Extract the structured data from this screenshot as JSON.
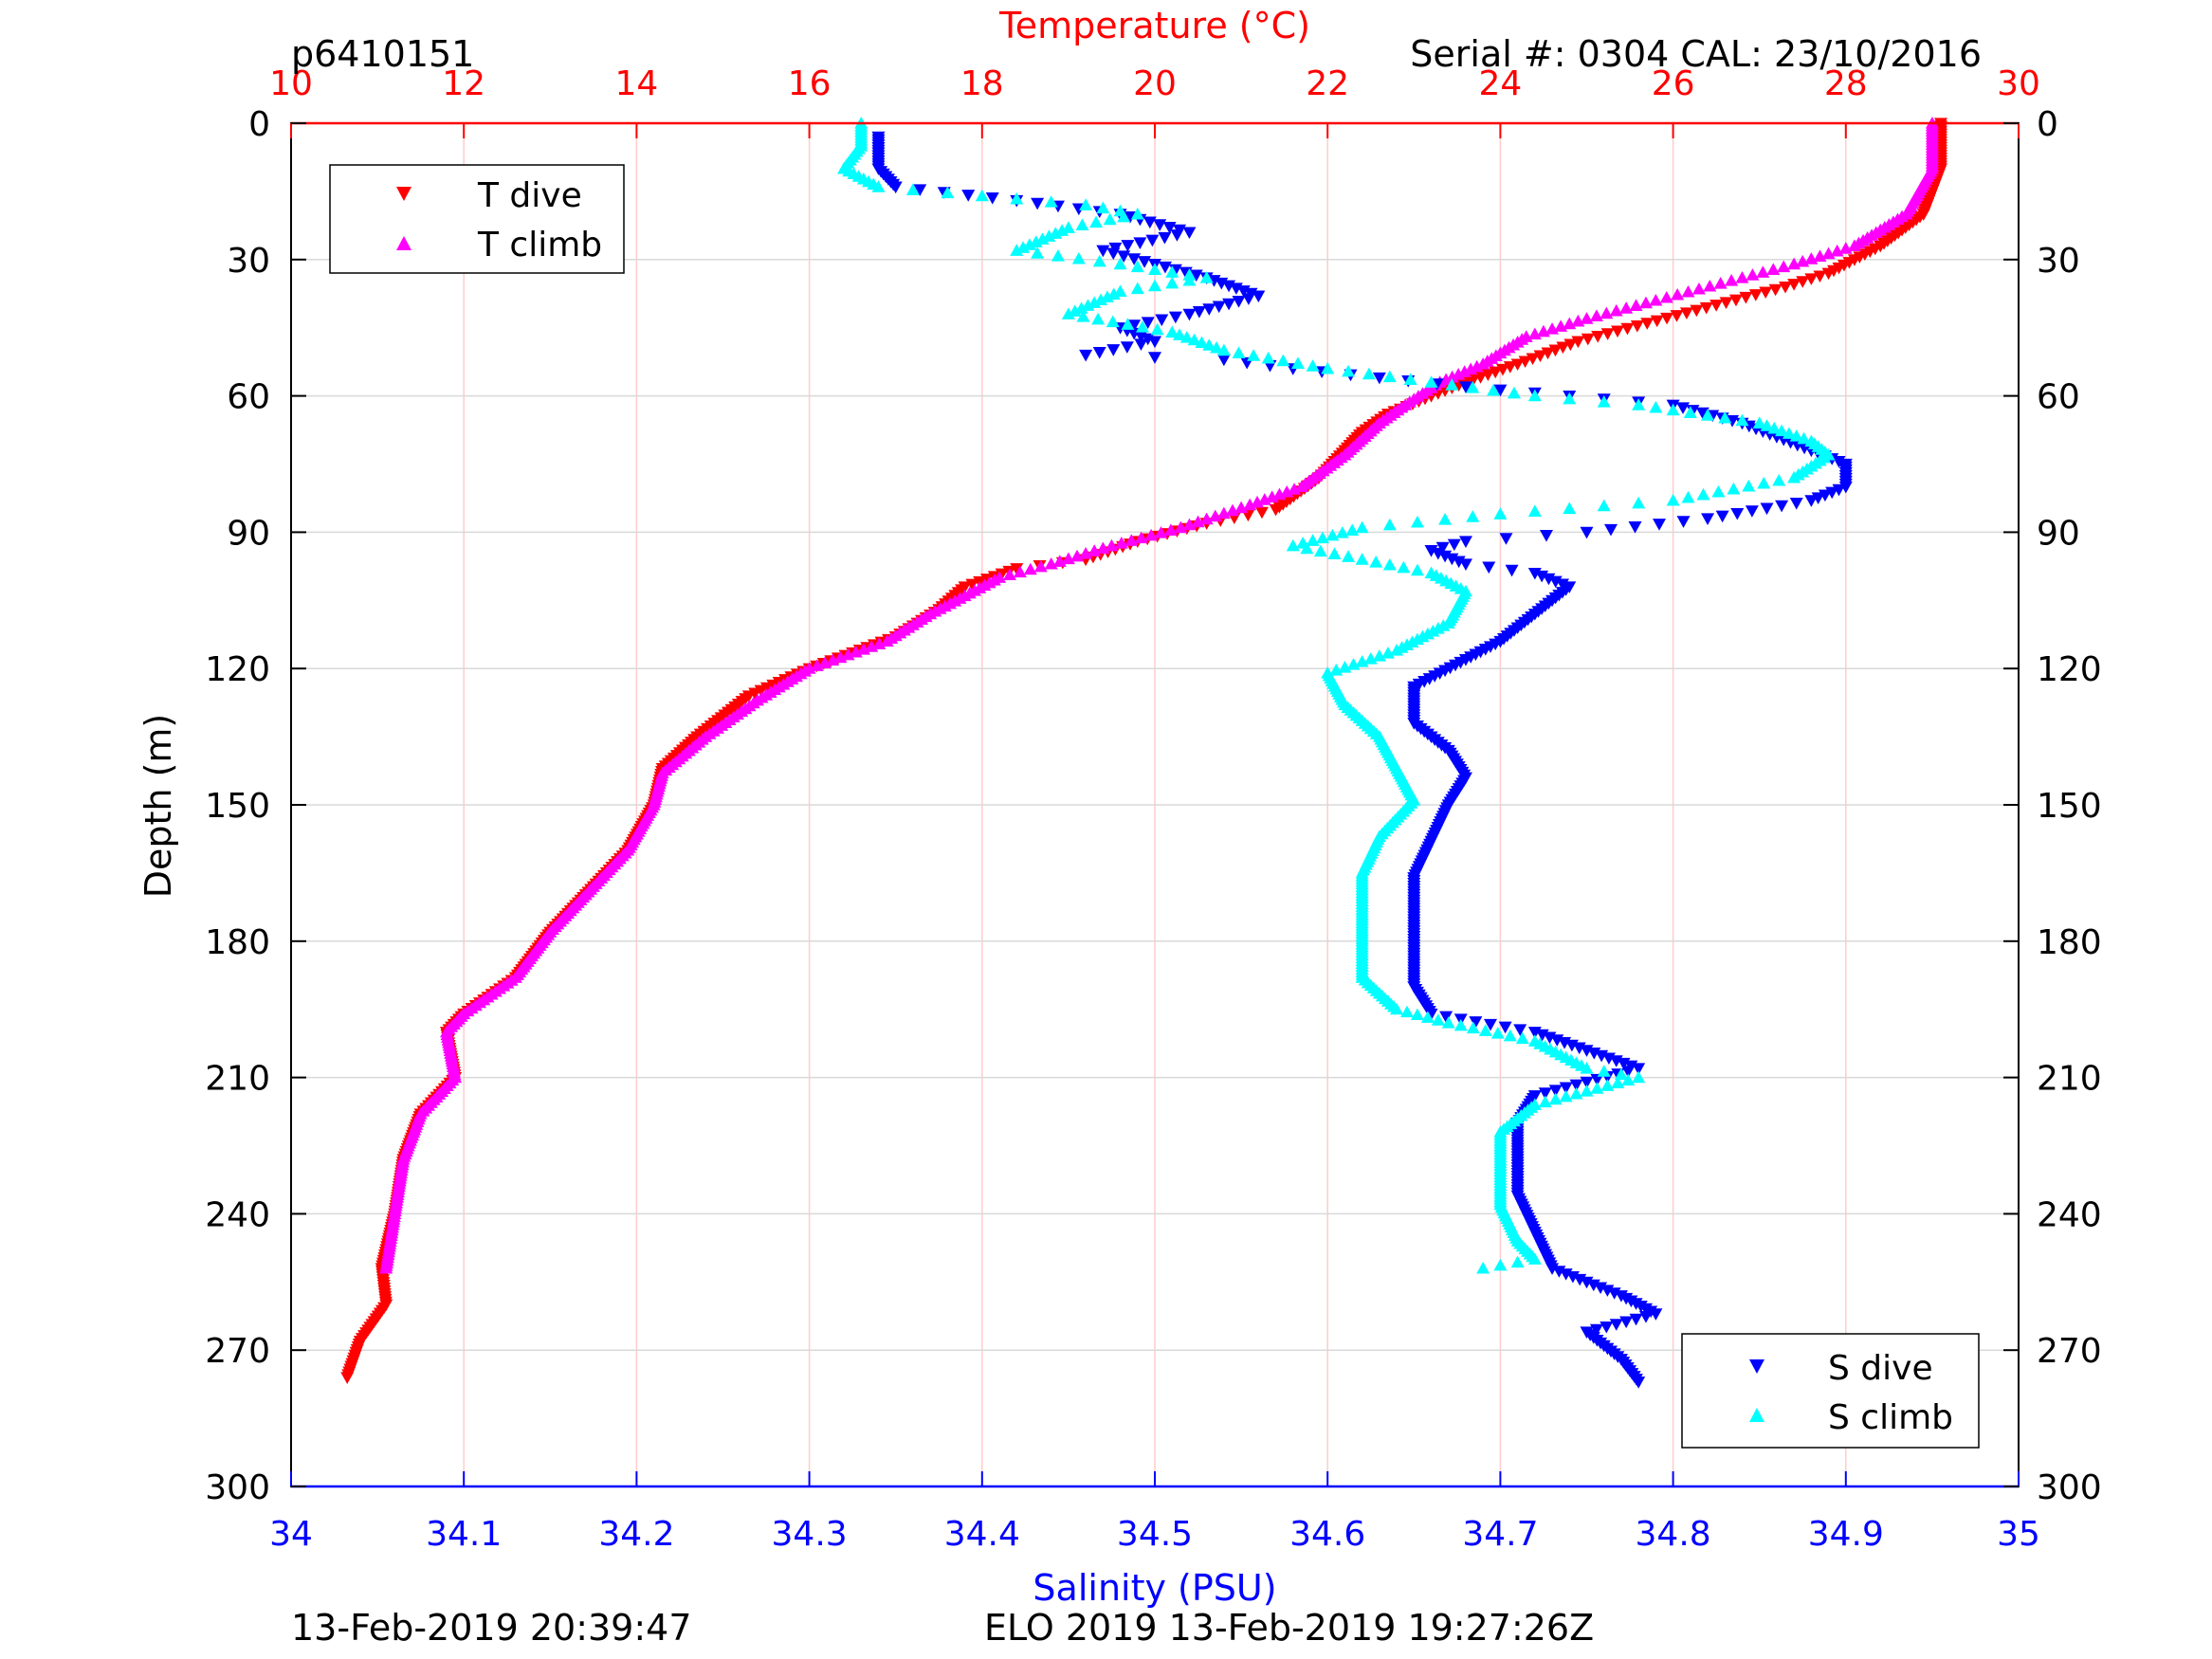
{
  "header": {
    "profile_id": "p6410151",
    "serial_cal": "Serial #: 0304  CAL: 23/10/2016"
  },
  "footer": {
    "left": "13-Feb-2019 20:39:47",
    "center": "ELO 2019 13-Feb-2019 19:27:26Z"
  },
  "colors": {
    "t_dive": "#ff0000",
    "t_climb": "#ff00ff",
    "s_dive": "#0000ff",
    "s_climb": "#00ffff",
    "temperature_axis": "#ff0000",
    "salinity_axis": "#0000ff",
    "grid_temp": "#ffcccc",
    "grid_depth": "#d9d9d9"
  },
  "chart_data": {
    "type": "scatter",
    "title": "",
    "ylabel": "Depth (m)",
    "ylim": [
      0,
      300
    ],
    "y_reversed": true,
    "y_ticks": [
      "0",
      "30",
      "60",
      "90",
      "120",
      "150",
      "180",
      "210",
      "240",
      "270",
      "300"
    ],
    "temperature_axis": {
      "label": "Temperature (°C)",
      "position": "top",
      "range": [
        10,
        30
      ],
      "ticks": [
        "10",
        "12",
        "14",
        "16",
        "18",
        "20",
        "22",
        "24",
        "26",
        "28",
        "30"
      ]
    },
    "salinity_axis": {
      "label": "Salinity (PSU)",
      "position": "bottom",
      "range": [
        34,
        35
      ],
      "ticks": [
        "34",
        "34.1",
        "34.2",
        "34.3",
        "34.4",
        "34.5",
        "34.6",
        "34.7",
        "34.8",
        "34.9",
        "35"
      ]
    },
    "grid": true,
    "legends": [
      {
        "placement": "top-left",
        "entries": [
          "T dive",
          "T climb"
        ]
      },
      {
        "placement": "bottom-right",
        "entries": [
          "S dive",
          "S climb"
        ]
      }
    ],
    "series": [
      {
        "name": "T dive",
        "axis": "temperature",
        "marker": "triangle-down",
        "points": [
          [
            29.1,
            0
          ],
          [
            29.1,
            10
          ],
          [
            28.9,
            20
          ],
          [
            28.4,
            27
          ],
          [
            27.8,
            33
          ],
          [
            27.3,
            36
          ],
          [
            26.5,
            40
          ],
          [
            25.7,
            44
          ],
          [
            24.9,
            48
          ],
          [
            24.2,
            53
          ],
          [
            23.6,
            57
          ],
          [
            23.2,
            60
          ],
          [
            22.7,
            64
          ],
          [
            22.4,
            68
          ],
          [
            22.2,
            72
          ],
          [
            21.9,
            78
          ],
          [
            21.4,
            85
          ],
          [
            20.6,
            88
          ],
          [
            19.8,
            92
          ],
          [
            19.2,
            96
          ],
          [
            18.4,
            98
          ],
          [
            17.8,
            102
          ],
          [
            17.5,
            107
          ],
          [
            17.0,
            113
          ],
          [
            16.0,
            120
          ],
          [
            15.3,
            126
          ],
          [
            14.7,
            135
          ],
          [
            14.3,
            142
          ],
          [
            14.2,
            150
          ],
          [
            13.9,
            160
          ],
          [
            13.5,
            168
          ],
          [
            13.0,
            178
          ],
          [
            12.6,
            188
          ],
          [
            12.0,
            196
          ],
          [
            11.8,
            200
          ],
          [
            11.9,
            210
          ],
          [
            11.5,
            218
          ],
          [
            11.3,
            228
          ],
          [
            11.2,
            240
          ],
          [
            11.05,
            252
          ],
          [
            11.1,
            260
          ],
          [
            10.8,
            268
          ],
          [
            10.65,
            276
          ]
        ]
      },
      {
        "name": "T climb",
        "axis": "temperature",
        "marker": "triangle-up",
        "points": [
          [
            29.0,
            0
          ],
          [
            29.0,
            10
          ],
          [
            28.7,
            20
          ],
          [
            28.1,
            27
          ],
          [
            27.4,
            31
          ],
          [
            26.8,
            34
          ],
          [
            25.8,
            39
          ],
          [
            25.0,
            43
          ],
          [
            24.3,
            47
          ],
          [
            23.8,
            53
          ],
          [
            23.3,
            57
          ],
          [
            22.9,
            62
          ],
          [
            22.6,
            66
          ],
          [
            22.2,
            73
          ],
          [
            21.7,
            80
          ],
          [
            21.1,
            84
          ],
          [
            20.3,
            89
          ],
          [
            19.5,
            93
          ],
          [
            18.8,
            97
          ],
          [
            18.2,
            100
          ],
          [
            17.8,
            104
          ],
          [
            17.4,
            108
          ],
          [
            16.9,
            114
          ],
          [
            16.0,
            120
          ],
          [
            15.4,
            127
          ],
          [
            14.8,
            135
          ],
          [
            14.3,
            143
          ],
          [
            14.2,
            150
          ],
          [
            13.9,
            160
          ],
          [
            13.5,
            168
          ],
          [
            13.0,
            178
          ],
          [
            12.6,
            188
          ],
          [
            12.0,
            196
          ],
          [
            11.8,
            200
          ],
          [
            11.9,
            210
          ],
          [
            11.5,
            218
          ],
          [
            11.3,
            228
          ],
          [
            11.2,
            240
          ],
          [
            11.1,
            252
          ]
        ]
      },
      {
        "name": "S dive",
        "axis": "salinity",
        "marker": "triangle-down",
        "points": [
          [
            34.34,
            3
          ],
          [
            34.34,
            10
          ],
          [
            34.35,
            14
          ],
          [
            34.42,
            17
          ],
          [
            34.48,
            20
          ],
          [
            34.52,
            24
          ],
          [
            34.47,
            28
          ],
          [
            34.5,
            31
          ],
          [
            34.53,
            34
          ],
          [
            34.56,
            38
          ],
          [
            34.52,
            42
          ],
          [
            34.48,
            45
          ],
          [
            34.5,
            48
          ],
          [
            34.46,
            51
          ],
          [
            34.54,
            52
          ],
          [
            34.58,
            54
          ],
          [
            34.63,
            56
          ],
          [
            34.68,
            58
          ],
          [
            34.74,
            60
          ],
          [
            34.8,
            62
          ],
          [
            34.84,
            66
          ],
          [
            34.88,
            72
          ],
          [
            34.9,
            75
          ],
          [
            34.9,
            80
          ],
          [
            34.88,
            83
          ],
          [
            34.82,
            87
          ],
          [
            34.75,
            90
          ],
          [
            34.68,
            92
          ],
          [
            34.66,
            94
          ],
          [
            34.68,
            97
          ],
          [
            34.72,
            99
          ],
          [
            34.74,
            102
          ],
          [
            34.72,
            108
          ],
          [
            34.7,
            114
          ],
          [
            34.68,
            118
          ],
          [
            34.65,
            124
          ],
          [
            34.65,
            132
          ],
          [
            34.67,
            138
          ],
          [
            34.68,
            144
          ],
          [
            34.67,
            150
          ],
          [
            34.66,
            158
          ],
          [
            34.65,
            166
          ],
          [
            34.65,
            174
          ],
          [
            34.65,
            182
          ],
          [
            34.65,
            190
          ],
          [
            34.66,
            196
          ],
          [
            34.72,
            200
          ],
          [
            34.75,
            204
          ],
          [
            34.78,
            208
          ],
          [
            34.72,
            214
          ],
          [
            34.71,
            220
          ],
          [
            34.71,
            228
          ],
          [
            34.71,
            236
          ],
          [
            34.72,
            244
          ],
          [
            34.73,
            252
          ],
          [
            34.77,
            258
          ],
          [
            34.79,
            262
          ],
          [
            34.75,
            266
          ],
          [
            34.77,
            272
          ],
          [
            34.78,
            277
          ]
        ]
      },
      {
        "name": "S climb",
        "axis": "salinity",
        "marker": "triangle-up",
        "points": [
          [
            34.33,
            0
          ],
          [
            34.33,
            5
          ],
          [
            34.32,
            10
          ],
          [
            34.34,
            14
          ],
          [
            34.4,
            16
          ],
          [
            34.46,
            18
          ],
          [
            34.49,
            20
          ],
          [
            34.45,
            23
          ],
          [
            34.42,
            28
          ],
          [
            34.48,
            31
          ],
          [
            34.53,
            34
          ],
          [
            34.48,
            37
          ],
          [
            34.45,
            42
          ],
          [
            34.51,
            46
          ],
          [
            34.54,
            50
          ],
          [
            34.6,
            54
          ],
          [
            34.66,
            57
          ],
          [
            34.72,
            60
          ],
          [
            34.78,
            62
          ],
          [
            34.85,
            66
          ],
          [
            34.88,
            70
          ],
          [
            34.89,
            73
          ],
          [
            34.87,
            78
          ],
          [
            34.8,
            83
          ],
          [
            34.7,
            86
          ],
          [
            34.62,
            89
          ],
          [
            34.58,
            93
          ],
          [
            34.62,
            96
          ],
          [
            34.66,
            99
          ],
          [
            34.68,
            103
          ],
          [
            34.67,
            110
          ],
          [
            34.64,
            116
          ],
          [
            34.6,
            121
          ],
          [
            34.61,
            128
          ],
          [
            34.63,
            135
          ],
          [
            34.64,
            142
          ],
          [
            34.65,
            149
          ],
          [
            34.63,
            157
          ],
          [
            34.62,
            165
          ],
          [
            34.62,
            173
          ],
          [
            34.62,
            180
          ],
          [
            34.62,
            188
          ],
          [
            34.64,
            195
          ],
          [
            34.67,
            198
          ],
          [
            34.72,
            202
          ],
          [
            34.75,
            208
          ],
          [
            34.78,
            210
          ],
          [
            34.72,
            216
          ],
          [
            34.7,
            222
          ],
          [
            34.7,
            230
          ],
          [
            34.7,
            238
          ],
          [
            34.71,
            246
          ],
          [
            34.72,
            250
          ],
          [
            34.69,
            252
          ]
        ]
      }
    ]
  }
}
